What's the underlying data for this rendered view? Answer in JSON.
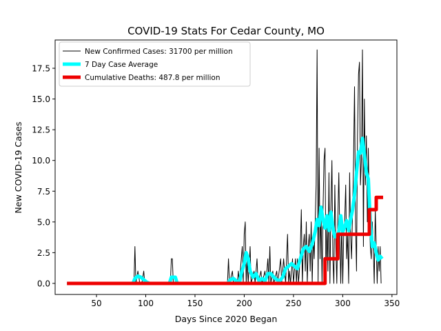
{
  "chart_data": {
    "type": "line",
    "title": "COVID-19 Stats For Cedar County, MO",
    "xlabel": "Days Since 2020 Began",
    "ylabel": "New COVID-19 Cases",
    "xlim": [
      8,
      355
    ],
    "ylim": [
      -0.9,
      19.8
    ],
    "xticks": [
      50,
      100,
      150,
      200,
      250,
      300,
      350
    ],
    "xtick_labels": [
      "50",
      "100",
      "150",
      "200",
      "250",
      "300",
      "350"
    ],
    "yticks": [
      0,
      2.5,
      5,
      7.5,
      10,
      12.5,
      15,
      17.5
    ],
    "ytick_labels": [
      "0.0",
      "2.5",
      "5.0",
      "7.5",
      "10.0",
      "12.5",
      "15.0",
      "17.5"
    ],
    "grid": false,
    "legend_position": "top-left",
    "series": [
      {
        "name": "New Confirmed Cases: 31700 per million",
        "color": "#000000",
        "stroke_width": 1,
        "points": [
          [
            20,
            0
          ],
          [
            88,
            0
          ],
          [
            89,
            3
          ],
          [
            90,
            0
          ],
          [
            92,
            1
          ],
          [
            94,
            0
          ],
          [
            96,
            0
          ],
          [
            98,
            1
          ],
          [
            99,
            0
          ],
          [
            125,
            0
          ],
          [
            126,
            2
          ],
          [
            127,
            2
          ],
          [
            128,
            0
          ],
          [
            183,
            0
          ],
          [
            184,
            2
          ],
          [
            185,
            0
          ],
          [
            188,
            1
          ],
          [
            189,
            0
          ],
          [
            193,
            0
          ],
          [
            194,
            1
          ],
          [
            195,
            0
          ],
          [
            198,
            3
          ],
          [
            199,
            0
          ],
          [
            200,
            4
          ],
          [
            201,
            5
          ],
          [
            202,
            0
          ],
          [
            203,
            2
          ],
          [
            204,
            0
          ],
          [
            206,
            3
          ],
          [
            207,
            0
          ],
          [
            210,
            1
          ],
          [
            211,
            0
          ],
          [
            213,
            2
          ],
          [
            214,
            0
          ],
          [
            217,
            1
          ],
          [
            218,
            0
          ],
          [
            221,
            1
          ],
          [
            222,
            0
          ],
          [
            224,
            2
          ],
          [
            225,
            0
          ],
          [
            226,
            3
          ],
          [
            227,
            0
          ],
          [
            229,
            1
          ],
          [
            230,
            0
          ],
          [
            233,
            1
          ],
          [
            234,
            0
          ],
          [
            237,
            2
          ],
          [
            238,
            0
          ],
          [
            240,
            2
          ],
          [
            241,
            1
          ],
          [
            242,
            0
          ],
          [
            244,
            4
          ],
          [
            245,
            0
          ],
          [
            246,
            1
          ],
          [
            247,
            0
          ],
          [
            249,
            2
          ],
          [
            250,
            0
          ],
          [
            251,
            1
          ],
          [
            252,
            2
          ],
          [
            253,
            0
          ],
          [
            254,
            2
          ],
          [
            255,
            0
          ],
          [
            256,
            1
          ],
          [
            257,
            3
          ],
          [
            258,
            6
          ],
          [
            259,
            0
          ],
          [
            260,
            3
          ],
          [
            261,
            4
          ],
          [
            262,
            1
          ],
          [
            263,
            5
          ],
          [
            264,
            0
          ],
          [
            265,
            3
          ],
          [
            266,
            4
          ],
          [
            267,
            1
          ],
          [
            268,
            5
          ],
          [
            269,
            0
          ],
          [
            270,
            4
          ],
          [
            271,
            2
          ],
          [
            272,
            5
          ],
          [
            273,
            8
          ],
          [
            274,
            19
          ],
          [
            275,
            0
          ],
          [
            276,
            11
          ],
          [
            277,
            2
          ],
          [
            278,
            6
          ],
          [
            279,
            0
          ],
          [
            280,
            6
          ],
          [
            281,
            10
          ],
          [
            282,
            11
          ],
          [
            283,
            0
          ],
          [
            284,
            5
          ],
          [
            285,
            1
          ],
          [
            286,
            9
          ],
          [
            287,
            0
          ],
          [
            288,
            6
          ],
          [
            289,
            10
          ],
          [
            290,
            2
          ],
          [
            291,
            0
          ],
          [
            292,
            8
          ],
          [
            293,
            3
          ],
          [
            294,
            0
          ],
          [
            295,
            5
          ],
          [
            296,
            9
          ],
          [
            297,
            4
          ],
          [
            298,
            0
          ],
          [
            299,
            5
          ],
          [
            300,
            0
          ],
          [
            301,
            4
          ],
          [
            302,
            5
          ],
          [
            303,
            8
          ],
          [
            304,
            2
          ],
          [
            305,
            4
          ],
          [
            306,
            0
          ],
          [
            307,
            9
          ],
          [
            308,
            4
          ],
          [
            309,
            2
          ],
          [
            310,
            6
          ],
          [
            311,
            10
          ],
          [
            312,
            16
          ],
          [
            313,
            5
          ],
          [
            314,
            1
          ],
          [
            315,
            12
          ],
          [
            316,
            17
          ],
          [
            317,
            18
          ],
          [
            318,
            8
          ],
          [
            319,
            10
          ],
          [
            320,
            19
          ],
          [
            321,
            3
          ],
          [
            322,
            15
          ],
          [
            323,
            8
          ],
          [
            324,
            12
          ],
          [
            325,
            5
          ],
          [
            326,
            11
          ],
          [
            327,
            6
          ],
          [
            328,
            3
          ],
          [
            329,
            2
          ],
          [
            330,
            5
          ],
          [
            331,
            3
          ],
          [
            332,
            0
          ],
          [
            333,
            6
          ],
          [
            334,
            3
          ],
          [
            335,
            0
          ],
          [
            336,
            3
          ],
          [
            337,
            1
          ],
          [
            338,
            3
          ],
          [
            339,
            0
          ]
        ]
      },
      {
        "name": "7 Day Case Average",
        "color": "#00ffff",
        "stroke_width": 5,
        "points": [
          [
            20,
            0
          ],
          [
            87,
            0
          ],
          [
            89,
            0.4
          ],
          [
            92,
            0.6
          ],
          [
            95,
            0.5
          ],
          [
            98,
            0.3
          ],
          [
            101,
            0.1
          ],
          [
            104,
            0
          ],
          [
            124,
            0
          ],
          [
            126,
            0.5
          ],
          [
            130,
            0.5
          ],
          [
            132,
            0
          ],
          [
            183,
            0
          ],
          [
            186,
            0.3
          ],
          [
            189,
            0.4
          ],
          [
            192,
            0.2
          ],
          [
            195,
            0
          ],
          [
            197,
            0.8
          ],
          [
            200,
            1.6
          ],
          [
            202,
            2.5
          ],
          [
            204,
            2
          ],
          [
            206,
            1
          ],
          [
            209,
            0.5
          ],
          [
            212,
            0.8
          ],
          [
            215,
            0.2
          ],
          [
            218,
            0.4
          ],
          [
            221,
            0.2
          ],
          [
            224,
            0.8
          ],
          [
            227,
            0.8
          ],
          [
            230,
            0.5
          ],
          [
            233,
            0.3
          ],
          [
            236,
            0.2
          ],
          [
            239,
            0.5
          ],
          [
            242,
            1.2
          ],
          [
            245,
            1.4
          ],
          [
            248,
            1.6
          ],
          [
            251,
            1.4
          ],
          [
            254,
            1.2
          ],
          [
            257,
            2
          ],
          [
            260,
            2.8
          ],
          [
            263,
            3
          ],
          [
            266,
            2.6
          ],
          [
            269,
            3.2
          ],
          [
            272,
            4.2
          ],
          [
            274,
            5.2
          ],
          [
            276,
            4.7
          ],
          [
            278,
            6.2
          ],
          [
            280,
            5.2
          ],
          [
            282,
            4.5
          ],
          [
            284,
            5.5
          ],
          [
            286,
            4.3
          ],
          [
            288,
            5.8
          ],
          [
            290,
            4.5
          ],
          [
            292,
            3.8
          ],
          [
            294,
            3.8
          ],
          [
            296,
            4.2
          ],
          [
            298,
            5.5
          ],
          [
            300,
            4.2
          ],
          [
            302,
            4.6
          ],
          [
            304,
            5.1
          ],
          [
            306,
            4.3
          ],
          [
            308,
            5.2
          ],
          [
            310,
            6
          ],
          [
            312,
            7.2
          ],
          [
            314,
            9
          ],
          [
            316,
            10.7
          ],
          [
            318,
            10.6
          ],
          [
            320,
            11.8
          ],
          [
            322,
            10.5
          ],
          [
            324,
            9
          ],
          [
            326,
            8.5
          ],
          [
            328,
            5
          ],
          [
            330,
            3
          ],
          [
            332,
            3.3
          ],
          [
            334,
            2.5
          ],
          [
            336,
            1.9
          ],
          [
            338,
            2.2
          ],
          [
            340,
            2
          ]
        ]
      },
      {
        "name": "Cumulative Deaths: 487.8 per million",
        "color": "#ee0000",
        "stroke_width": 5,
        "points": [
          [
            20,
            0
          ],
          [
            282,
            0
          ],
          [
            282,
            2
          ],
          [
            295,
            2
          ],
          [
            295,
            4
          ],
          [
            327,
            4
          ],
          [
            327,
            6
          ],
          [
            334,
            6
          ],
          [
            334,
            7
          ],
          [
            341,
            7
          ]
        ]
      }
    ]
  }
}
